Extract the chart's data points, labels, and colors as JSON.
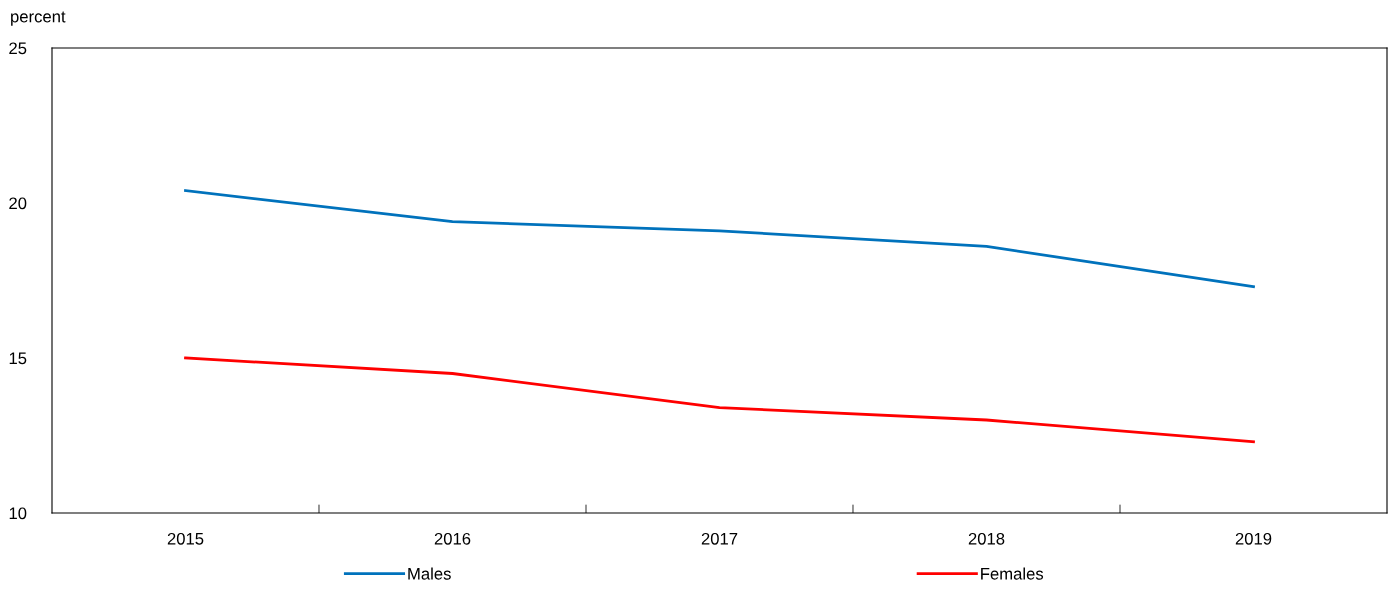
{
  "chart_data": {
    "type": "line",
    "ylabel": "percent",
    "categories": [
      "2015",
      "2016",
      "2017",
      "2018",
      "2019"
    ],
    "series": [
      {
        "name": "Males",
        "color": "#0072bc",
        "values": [
          20.4,
          19.4,
          19.1,
          18.6,
          17.3
        ]
      },
      {
        "name": "Females",
        "color": "#ff0000",
        "values": [
          15.0,
          14.5,
          13.4,
          13.0,
          12.3
        ]
      }
    ],
    "ylim": [
      10,
      25
    ],
    "yticks": [
      10,
      15,
      20,
      25
    ],
    "grid": false,
    "legend": "bottom",
    "marker": "none",
    "line_style": "solid"
  }
}
